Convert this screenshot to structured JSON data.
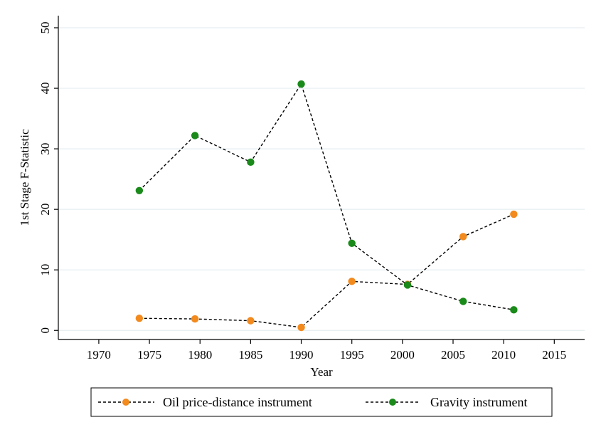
{
  "chart_data": {
    "type": "line",
    "title": "",
    "xlabel": "Year",
    "ylabel": "1st Stage F-Statistic",
    "xlim": [
      1966,
      2018
    ],
    "ylim": [
      -1.5,
      52
    ],
    "xticks": [
      1970,
      1975,
      1980,
      1985,
      1990,
      1995,
      2000,
      2005,
      2010,
      2015
    ],
    "yticks": [
      0,
      10,
      20,
      30,
      40,
      50
    ],
    "grid": true,
    "legend_position": "bottom",
    "series": [
      {
        "name": "Oil price-distance instrument",
        "color": "#f28a1e",
        "line_style": "dashed",
        "x": [
          1974,
          1979.5,
          1985,
          1990,
          1995,
          2000.5,
          2006,
          2011
        ],
        "y": [
          2.0,
          1.9,
          1.6,
          0.5,
          8.1,
          7.6,
          15.5,
          19.2
        ]
      },
      {
        "name": "Gravity instrument",
        "color": "#1a8a1a",
        "line_style": "dashed",
        "x": [
          1974,
          1979.5,
          1985,
          1990,
          1995,
          2000.5,
          2006,
          2011
        ],
        "y": [
          23.1,
          32.2,
          27.8,
          40.7,
          14.4,
          7.5,
          4.8,
          3.4
        ]
      }
    ]
  }
}
